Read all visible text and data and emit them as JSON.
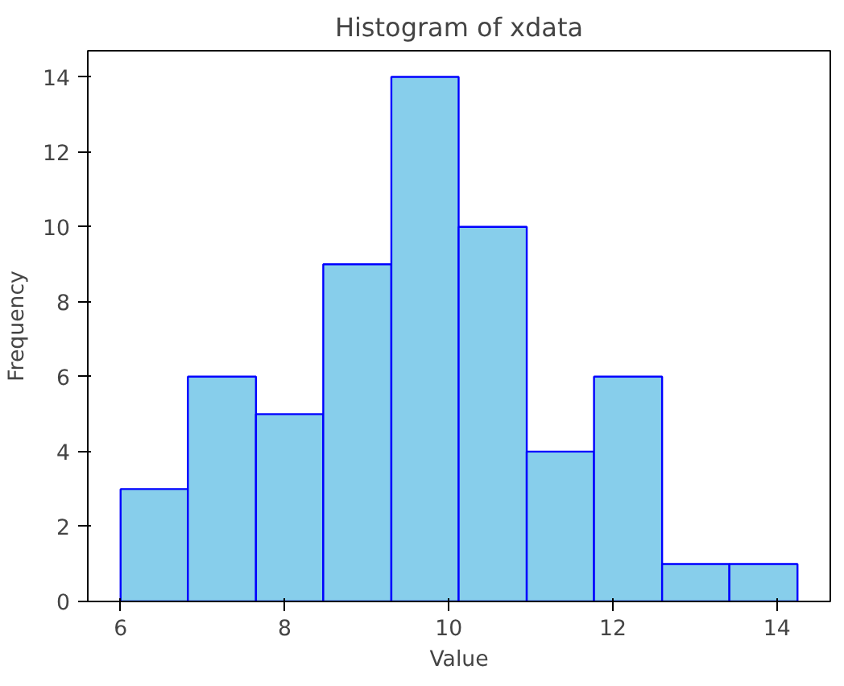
{
  "chart_data": {
    "type": "histogram",
    "title": "Histogram of xdata",
    "xlabel": "Value",
    "ylabel": "Frequency",
    "bins": [
      6.0,
      6.82,
      7.65,
      8.47,
      9.3,
      10.12,
      10.95,
      11.77,
      12.6,
      13.42,
      14.25
    ],
    "values": [
      3,
      6,
      5,
      9,
      14,
      10,
      4,
      6,
      1,
      1
    ],
    "color": "#87ceeb",
    "xlim": [
      5.6,
      14.65
    ],
    "ylim": [
      0,
      14.7
    ],
    "xticks": [
      6,
      8,
      10,
      12,
      14
    ],
    "yticks": [
      0,
      2,
      4,
      6,
      8,
      10,
      12,
      14
    ],
    "grid": false
  }
}
